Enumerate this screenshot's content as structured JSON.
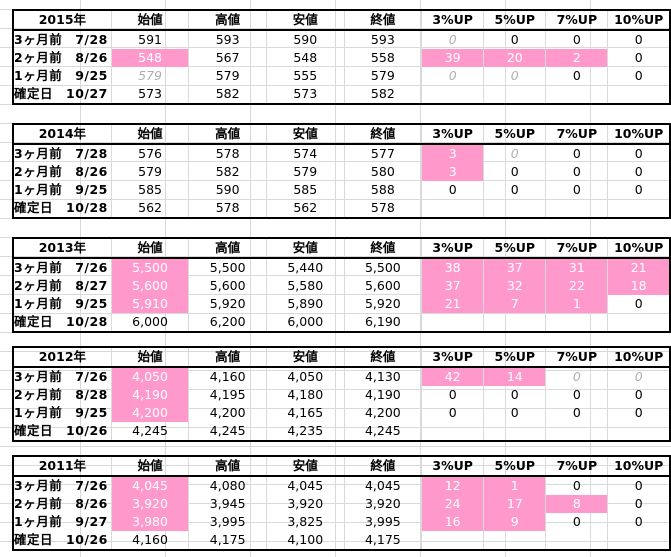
{
  "headers": [
    "",
    "始値",
    "高値",
    "安値",
    "終値",
    "3%UP",
    "5%UP",
    "7%UP",
    "10%UP"
  ],
  "blocks": [
    {
      "year": "2015年",
      "rows": [
        {
          "label": "3ヶ月前　7/28",
          "cells": [
            "591",
            "593",
            "590",
            "593",
            "0",
            "0",
            "0",
            "0"
          ],
          "styles": [
            "",
            "",
            "",
            "",
            "ghost",
            "",
            "",
            ""
          ]
        },
        {
          "label": "2ヶ月前　8/26",
          "cells": [
            "548",
            "567",
            "548",
            "558",
            "39",
            "20",
            "2",
            "0"
          ],
          "styles": [
            "pink",
            "",
            "",
            "",
            "pink",
            "pink",
            "pink",
            ""
          ]
        },
        {
          "label": "1ヶ月前　9/25",
          "cells": [
            "579",
            "579",
            "555",
            "579",
            "0",
            "0",
            "0",
            "0"
          ],
          "styles": [
            "ghost",
            "",
            "",
            "",
            "ghost",
            "ghost",
            "",
            ""
          ]
        },
        {
          "label": "確定日　10/27",
          "cells": [
            "573",
            "582",
            "573",
            "582",
            "",
            "",
            "",
            ""
          ],
          "styles": [
            "",
            "",
            "",
            "",
            "",
            "",
            "",
            ""
          ]
        }
      ]
    },
    {
      "year": "2014年",
      "rows": [
        {
          "label": "3ヶ月前　7/28",
          "cells": [
            "576",
            "578",
            "574",
            "577",
            "3",
            "0",
            "0",
            "0"
          ],
          "styles": [
            "",
            "",
            "",
            "",
            "pink",
            "ghost",
            "",
            ""
          ]
        },
        {
          "label": "2ヶ月前　8/26",
          "cells": [
            "579",
            "582",
            "579",
            "580",
            "3",
            "0",
            "0",
            "0"
          ],
          "styles": [
            "",
            "",
            "",
            "",
            "pink",
            "",
            "",
            ""
          ]
        },
        {
          "label": "1ヶ月前　9/25",
          "cells": [
            "585",
            "590",
            "585",
            "588",
            "0",
            "0",
            "0",
            "0"
          ],
          "styles": [
            "",
            "",
            "",
            "",
            "",
            "",
            "",
            ""
          ]
        },
        {
          "label": "確定日　10/28",
          "cells": [
            "562",
            "578",
            "562",
            "578",
            "",
            "",
            "",
            ""
          ],
          "styles": [
            "",
            "",
            "",
            "",
            "",
            "",
            "",
            ""
          ]
        }
      ]
    },
    {
      "year": "2013年",
      "rows": [
        {
          "label": "3ヶ月前　7/26",
          "cells": [
            "5,500",
            "5,500",
            "5,440",
            "5,500",
            "38",
            "37",
            "31",
            "21"
          ],
          "styles": [
            "pink",
            "",
            "",
            "",
            "pink",
            "pink",
            "pink",
            "pink"
          ]
        },
        {
          "label": "2ヶ月前　8/27",
          "cells": [
            "5,600",
            "5,600",
            "5,580",
            "5,600",
            "37",
            "32",
            "22",
            "18"
          ],
          "styles": [
            "pink",
            "",
            "",
            "",
            "pink",
            "pink",
            "pink",
            "pink"
          ]
        },
        {
          "label": "1ヶ月前　9/25",
          "cells": [
            "5,910",
            "5,920",
            "5,890",
            "5,920",
            "21",
            "7",
            "1",
            "0"
          ],
          "styles": [
            "pink",
            "",
            "",
            "",
            "pink",
            "pink",
            "pink",
            ""
          ]
        },
        {
          "label": "確定日　10/28",
          "cells": [
            "6,000",
            "6,200",
            "6,000",
            "6,190",
            "",
            "",
            "",
            ""
          ],
          "styles": [
            "",
            "",
            "",
            "",
            "",
            "",
            "",
            ""
          ]
        }
      ]
    },
    {
      "year": "2012年",
      "rows": [
        {
          "label": "3ヶ月前　7/26",
          "cells": [
            "4,050",
            "4,160",
            "4,050",
            "4,130",
            "42",
            "14",
            "0",
            "0"
          ],
          "styles": [
            "pink",
            "",
            "",
            "",
            "pink",
            "pink",
            "ghost",
            "ghost"
          ]
        },
        {
          "label": "2ヶ月前　8/28",
          "cells": [
            "4,190",
            "4,195",
            "4,180",
            "4,190",
            "0",
            "0",
            "0",
            "0"
          ],
          "styles": [
            "pink",
            "",
            "",
            "",
            "",
            "",
            "",
            ""
          ]
        },
        {
          "label": "1ヶ月前　9/25",
          "cells": [
            "4,200",
            "4,200",
            "4,165",
            "4,200",
            "0",
            "0",
            "0",
            "0"
          ],
          "styles": [
            "pink",
            "",
            "",
            "",
            "",
            "",
            "",
            ""
          ]
        },
        {
          "label": "確定日　10/26",
          "cells": [
            "4,245",
            "4,245",
            "4,235",
            "4,245",
            "",
            "",
            "",
            ""
          ],
          "styles": [
            "",
            "",
            "",
            "",
            "",
            "",
            "",
            ""
          ]
        }
      ]
    },
    {
      "year": "2011年",
      "rows": [
        {
          "label": "3ヶ月前　7/26",
          "cells": [
            "4,045",
            "4,080",
            "4,045",
            "4,045",
            "12",
            "1",
            "0",
            "0"
          ],
          "styles": [
            "pink",
            "",
            "",
            "",
            "pink",
            "pink",
            "",
            ""
          ]
        },
        {
          "label": "2ヶ月前　8/26",
          "cells": [
            "3,920",
            "3,945",
            "3,920",
            "3,920",
            "24",
            "17",
            "8",
            "0"
          ],
          "styles": [
            "pink",
            "",
            "",
            "",
            "pink",
            "pink",
            "pink",
            ""
          ]
        },
        {
          "label": "1ヶ月前　9/27",
          "cells": [
            "3,980",
            "3,995",
            "3,825",
            "3,995",
            "16",
            "9",
            "0",
            "0"
          ],
          "styles": [
            "pink",
            "",
            "",
            "",
            "pink",
            "pink",
            "",
            ""
          ]
        },
        {
          "label": "確定日　10/26",
          "cells": [
            "4,160",
            "4,175",
            "4,100",
            "4,175",
            "",
            "",
            "",
            ""
          ],
          "styles": [
            "",
            "",
            "",
            "",
            "",
            "",
            "",
            ""
          ]
        }
      ]
    }
  ],
  "colors": {
    "highlight": "#ff99cc",
    "ghost_text": "#b0b0b0",
    "gridline": "#d9d9d9"
  }
}
